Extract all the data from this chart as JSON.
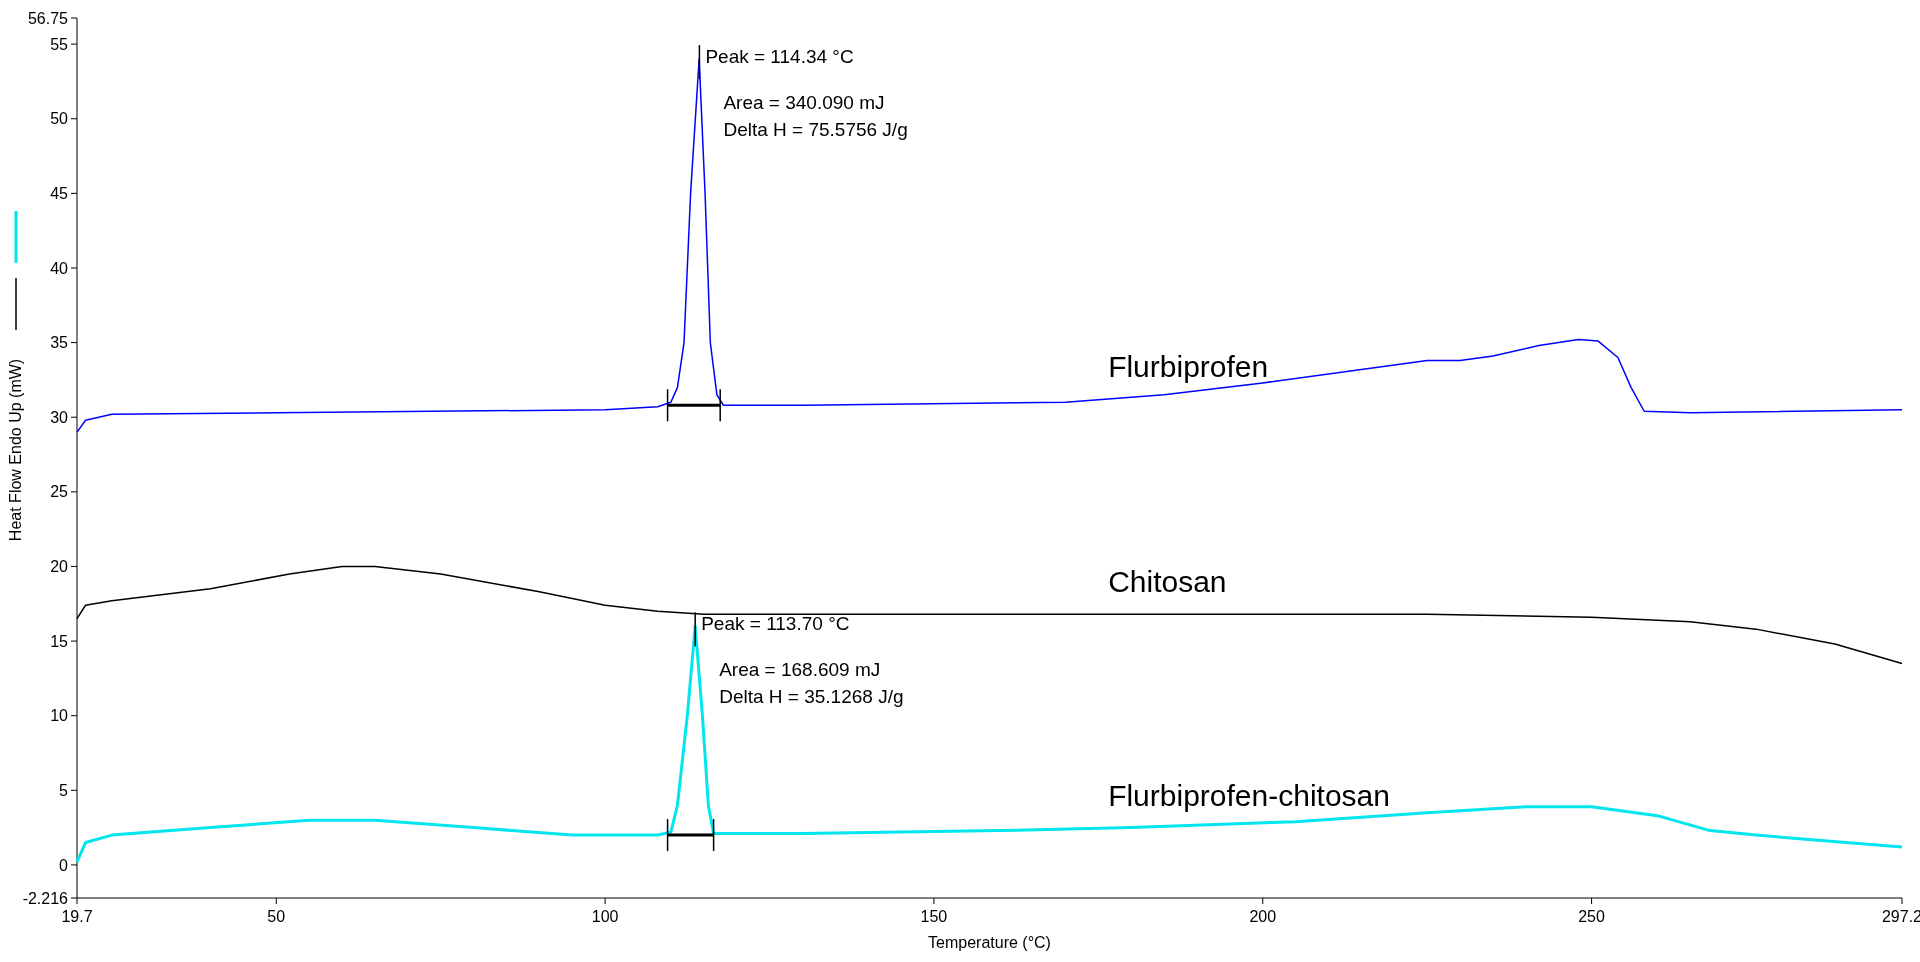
{
  "chart_data": {
    "type": "line",
    "xlabel": "Temperature (°C)",
    "ylabel": "Heat Flow Endo Up (mW)",
    "xlim": [
      19.7,
      297.2
    ],
    "xticks": [
      19.7,
      50,
      100,
      150,
      200,
      250,
      297.2
    ],
    "ylim": [
      -2.216,
      56.75
    ],
    "yticks": [
      -2.216,
      0,
      5,
      10,
      15,
      20,
      25,
      30,
      35,
      40,
      45,
      50,
      55,
      56.75
    ],
    "grid": false,
    "marker": "none",
    "line_style": "solid",
    "series": [
      {
        "name": "Flurbiprofen",
        "color": "#0000ff",
        "x": [
          19.7,
          21,
          25,
          50,
          100,
          108,
          110,
          111,
          112,
          113,
          114.3,
          115.2,
          116,
          117,
          118,
          130,
          170,
          185,
          200,
          220,
          225,
          230,
          235,
          242,
          248,
          251,
          254,
          256,
          258,
          265,
          297.2
        ],
        "values": [
          29,
          29.8,
          30.2,
          30.3,
          30.5,
          30.7,
          31,
          32,
          35,
          45,
          54,
          45,
          35,
          31.5,
          30.8,
          30.8,
          31,
          31.5,
          32.3,
          33.5,
          33.8,
          33.8,
          34.1,
          34.8,
          35.2,
          35.1,
          34,
          32,
          30.4,
          30.3,
          30.5
        ]
      },
      {
        "name": "Chitosan",
        "color": "#000000",
        "x": [
          19.7,
          21,
          25,
          40,
          52,
          60,
          65,
          75,
          90,
          100,
          108,
          115,
          150,
          225,
          250,
          265,
          275,
          287,
          297.2
        ],
        "values": [
          16.5,
          17.4,
          17.7,
          18.5,
          19.5,
          20,
          20,
          19.5,
          18.3,
          17.4,
          17,
          16.8,
          16.8,
          16.8,
          16.6,
          16.3,
          15.8,
          14.8,
          13.5
        ]
      },
      {
        "name": "Flurbiprofen-chitosan",
        "color": "#00e5ee",
        "x": [
          19.7,
          21,
          25,
          40,
          55,
          65,
          80,
          95,
          108,
          110,
          111,
          112.5,
          113.7,
          114.8,
          115.7,
          116.5,
          130,
          160,
          180,
          205,
          225,
          240,
          250,
          260,
          268,
          275,
          297.2
        ],
        "values": [
          0.2,
          1.5,
          2,
          2.5,
          3,
          3,
          2.5,
          2,
          2,
          2.2,
          4,
          10,
          16,
          10,
          4,
          2.1,
          2.1,
          2.3,
          2.5,
          2.9,
          3.5,
          3.9,
          3.9,
          3.3,
          2.3,
          2,
          1.2
        ]
      },
      {
        "color": "#000000",
        "x": [
          109.5,
          117.5
        ],
        "values": [
          30.8,
          30.8
        ]
      },
      {
        "color": "#000000",
        "x": [
          109.5,
          116.5
        ],
        "values": [
          2,
          2
        ]
      }
    ],
    "annotations": [
      {
        "text": "Peak = 114.34 °C",
        "x": 114.34,
        "y": 54
      },
      "Area = 340.090 mJ",
      "Delta H = 75.5756 J/g",
      {
        "text": "Peak = 113.70 °C",
        "x": 113.7,
        "y": 16
      },
      "Area = 168.609 mJ",
      "Delta H = 35.1268 J/g"
    ]
  }
}
